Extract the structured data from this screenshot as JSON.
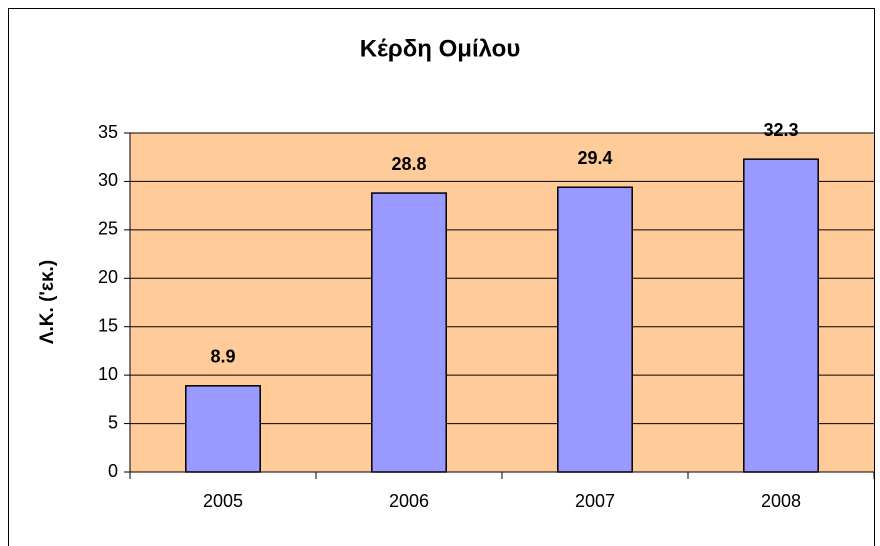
{
  "chart_data": {
    "type": "bar",
    "title": "Κέρδη Ομίλου",
    "y_label": "Λ.Κ. ('εκ.)",
    "categories": [
      "2005",
      "2006",
      "2007",
      "2008"
    ],
    "values": [
      8.9,
      28.8,
      29.4,
      32.3
    ],
    "color": "#9999ff",
    "plot_background": "#ffcc99",
    "ylim": [
      0,
      35
    ],
    "yticks": [
      0,
      5,
      10,
      15,
      20,
      25,
      30,
      35
    ],
    "grid": true
  }
}
